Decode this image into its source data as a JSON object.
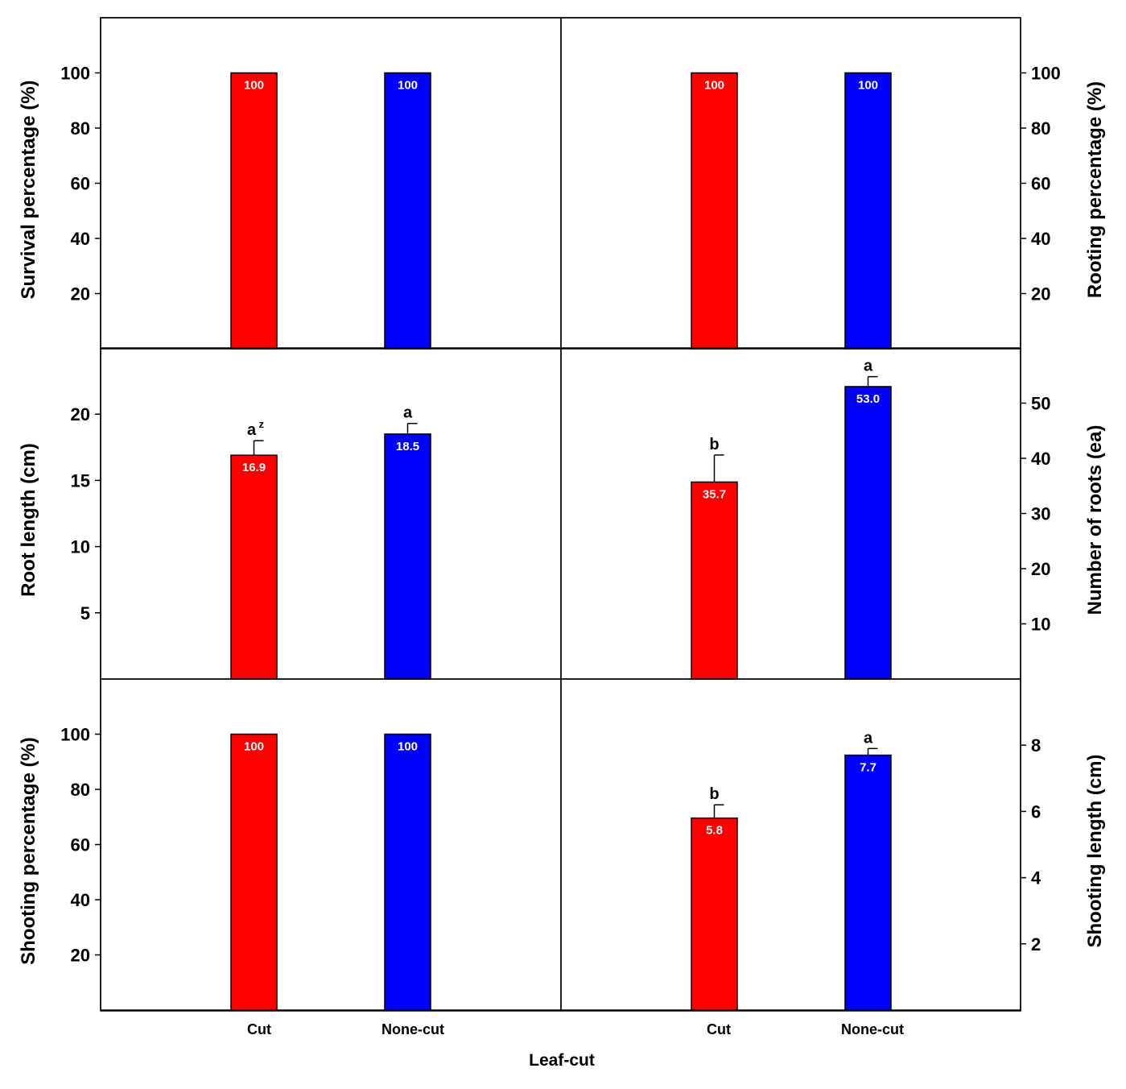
{
  "colors": {
    "cut": "#ff0000",
    "none_cut": "#0000ff",
    "frame": "#000000",
    "value_text": "#ffffff"
  },
  "categories": [
    "Cut",
    "None-cut"
  ],
  "xlabel": "Leaf-cut",
  "chart_data": [
    {
      "type": "bar",
      "panel": "top-left",
      "axis_side": "left",
      "ylabel": "Survival percentage (%)",
      "ylim": [
        0,
        120
      ],
      "ticks": [
        20,
        40,
        60,
        80,
        100
      ],
      "tick_labels": [
        "20",
        "40",
        "60",
        "80",
        "100"
      ],
      "categories": [
        "Cut",
        "None-cut"
      ],
      "values": [
        100,
        100
      ],
      "value_labels": [
        "100",
        "100"
      ],
      "errors": [
        0,
        0
      ],
      "sig": [
        "",
        ""
      ],
      "sig_sup": [
        "",
        ""
      ]
    },
    {
      "type": "bar",
      "panel": "top-right",
      "axis_side": "right",
      "ylabel": "Rooting percentage (%)",
      "ylim": [
        0,
        120
      ],
      "ticks": [
        20,
        40,
        60,
        80,
        100
      ],
      "tick_labels": [
        "20",
        "40",
        "60",
        "80",
        "100"
      ],
      "categories": [
        "Cut",
        "None-cut"
      ],
      "values": [
        100,
        100
      ],
      "value_labels": [
        "100",
        "100"
      ],
      "errors": [
        0,
        0
      ],
      "sig": [
        "",
        ""
      ],
      "sig_sup": [
        "",
        ""
      ]
    },
    {
      "type": "bar",
      "panel": "middle-left",
      "axis_side": "left",
      "ylabel": "Root length (cm)",
      "ylim": [
        0,
        25
      ],
      "ticks": [
        5,
        10,
        15,
        20
      ],
      "tick_labels": [
        "5",
        "10",
        "15",
        "20"
      ],
      "categories": [
        "Cut",
        "None-cut"
      ],
      "values": [
        16.9,
        18.5
      ],
      "value_labels": [
        "16.9",
        "18.5"
      ],
      "errors": [
        1.1,
        0.8
      ],
      "sig": [
        "a",
        "a"
      ],
      "sig_sup": [
        "z",
        ""
      ]
    },
    {
      "type": "bar",
      "panel": "middle-right",
      "axis_side": "right",
      "ylabel": "Number of roots (ea)",
      "ylim": [
        0,
        60
      ],
      "ticks": [
        10,
        20,
        30,
        40,
        50
      ],
      "tick_labels": [
        "10",
        "20",
        "30",
        "40",
        "50"
      ],
      "categories": [
        "Cut",
        "None-cut"
      ],
      "values": [
        35.7,
        53.0
      ],
      "value_labels": [
        "35.7",
        "53.0"
      ],
      "errors": [
        4.9,
        1.8
      ],
      "sig": [
        "b",
        "a"
      ],
      "sig_sup": [
        "",
        ""
      ]
    },
    {
      "type": "bar",
      "panel": "bottom-left",
      "axis_side": "left",
      "ylabel": "Shooting percentage (%)",
      "ylim": [
        0,
        120
      ],
      "ticks": [
        20,
        40,
        60,
        80,
        100
      ],
      "tick_labels": [
        "20",
        "40",
        "60",
        "80",
        "100"
      ],
      "categories": [
        "Cut",
        "None-cut"
      ],
      "values": [
        100,
        100
      ],
      "value_labels": [
        "100",
        "100"
      ],
      "errors": [
        0,
        0
      ],
      "sig": [
        "",
        ""
      ],
      "sig_sup": [
        "",
        ""
      ]
    },
    {
      "type": "bar",
      "panel": "bottom-right",
      "axis_side": "right",
      "ylabel": "Shooting length (cm)",
      "ylim": [
        0,
        10
      ],
      "ticks": [
        2,
        4,
        6,
        8
      ],
      "tick_labels": [
        "2",
        "4",
        "6",
        "8"
      ],
      "categories": [
        "Cut",
        "None-cut"
      ],
      "values": [
        5.8,
        7.7
      ],
      "value_labels": [
        "5.8",
        "7.7"
      ],
      "errors": [
        0.4,
        0.2
      ],
      "sig": [
        "b",
        "a"
      ],
      "sig_sup": [
        "",
        ""
      ]
    }
  ]
}
